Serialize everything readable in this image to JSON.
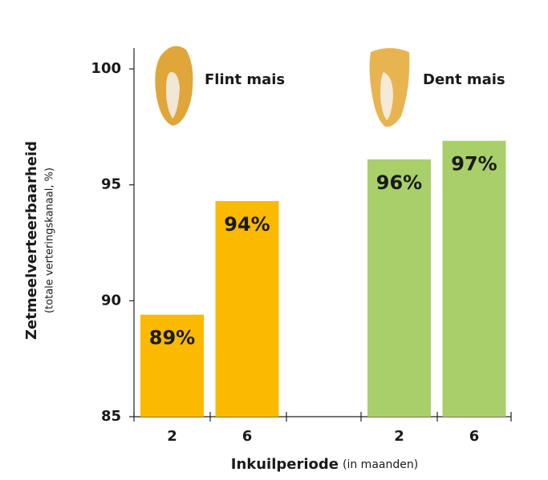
{
  "chart_data": {
    "type": "bar",
    "y_label": "Zetmeelverteerbaarheid",
    "y_sublabel": "(totale verteringskanaal, %)",
    "x_label": "Inkuilperiode",
    "x_sublabel": "(in maanden)",
    "categories": [
      "2",
      "6"
    ],
    "series": [
      {
        "name": "Flint mais",
        "color": "#fbb900",
        "values": [
          89.4,
          94.3
        ],
        "value_labels": [
          "89%",
          "94%"
        ]
      },
      {
        "name": "Dent mais",
        "color": "#a9cf6a",
        "values": [
          96.1,
          96.9
        ],
        "value_labels": [
          "96%",
          "97%"
        ]
      }
    ],
    "ylim": [
      85,
      100.9
    ],
    "yticks": [
      85,
      90,
      95,
      100
    ]
  }
}
